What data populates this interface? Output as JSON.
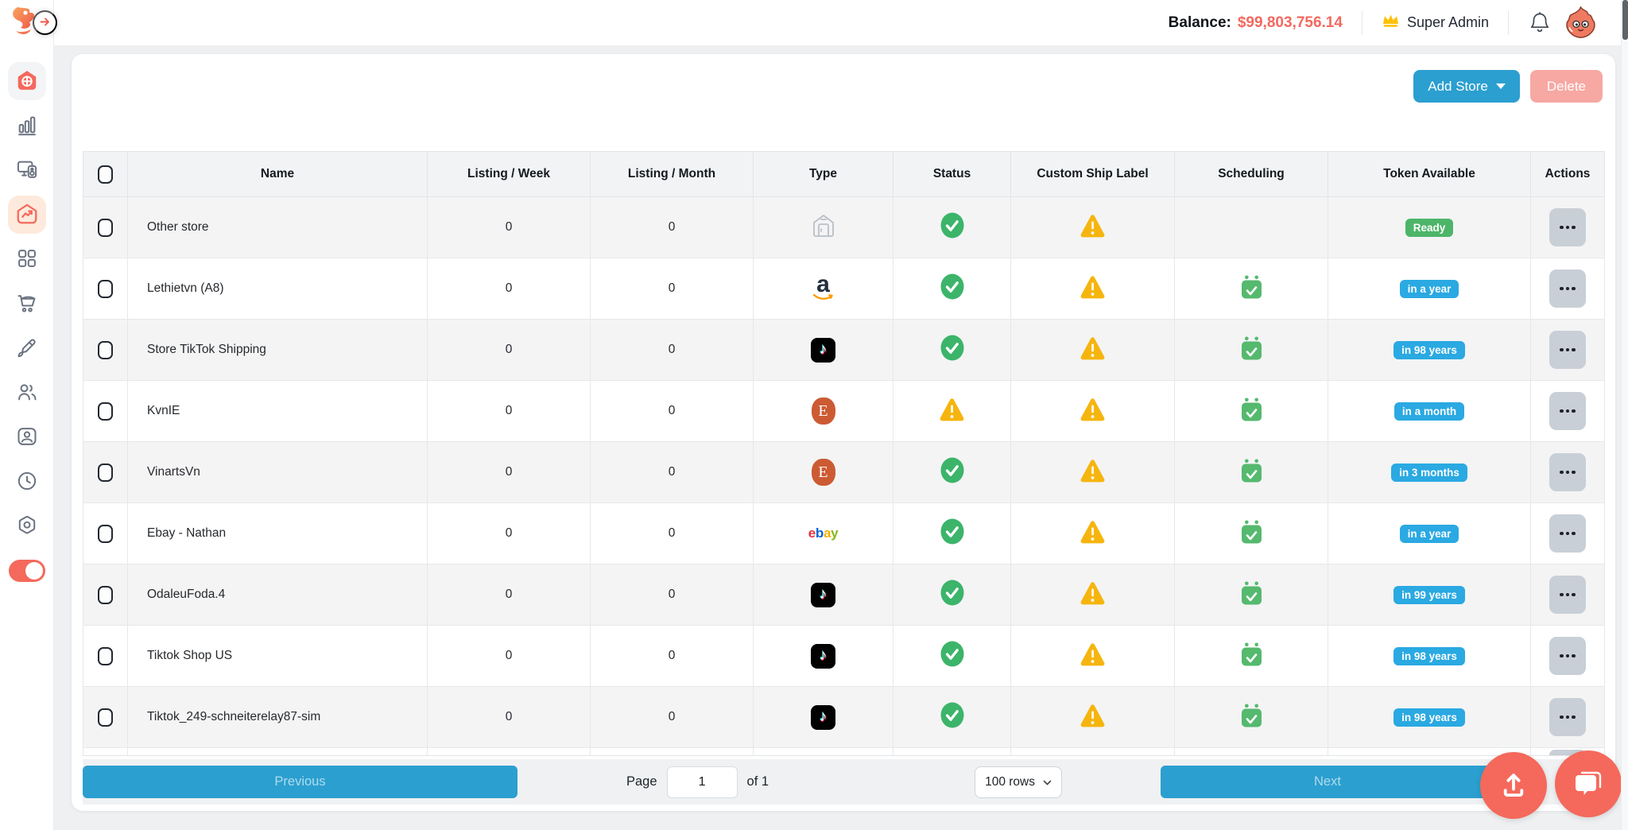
{
  "topbar": {
    "balance_label": "Balance:",
    "balance_value": "$99,803,756.14",
    "role_label": "Super Admin"
  },
  "sidebar": {
    "items": [
      {
        "id": "home",
        "icon": "home-globe-icon",
        "state": "bg-gray"
      },
      {
        "id": "analytics",
        "icon": "bar-chart-icon",
        "state": ""
      },
      {
        "id": "billing",
        "icon": "device-pay-icon",
        "state": ""
      },
      {
        "id": "stores",
        "icon": "home-trend-icon",
        "state": "bg-peach"
      },
      {
        "id": "apps",
        "icon": "grid-icon",
        "state": ""
      },
      {
        "id": "orders",
        "icon": "cart-icon",
        "state": ""
      },
      {
        "id": "design",
        "icon": "brush-icon",
        "state": ""
      },
      {
        "id": "members",
        "icon": "users-icon",
        "state": ""
      },
      {
        "id": "profile",
        "icon": "id-card-icon",
        "state": ""
      },
      {
        "id": "history",
        "icon": "clock-icon",
        "state": ""
      },
      {
        "id": "settings",
        "icon": "settings-icon",
        "state": ""
      }
    ],
    "toggle_on": true
  },
  "toolbar": {
    "add_store_label": "Add Store",
    "delete_label": "Delete"
  },
  "table": {
    "headers": [
      "Name",
      "Listing / Week",
      "Listing / Month",
      "Type",
      "Status",
      "Custom Ship Label",
      "Scheduling",
      "Token Available",
      "Actions"
    ],
    "rows": [
      {
        "name": "Other store",
        "listing_week": "0",
        "listing_month": "0",
        "type_icon": "storefront-icon",
        "status_icon": "check-icon",
        "ship_label_icon": "warning-icon",
        "scheduling_icon": "",
        "token": {
          "label": "Ready",
          "color": "green"
        }
      },
      {
        "name": "Lethietvn (A8)",
        "listing_week": "0",
        "listing_month": "0",
        "type_icon": "amazon-icon",
        "status_icon": "check-icon",
        "ship_label_icon": "warning-icon",
        "scheduling_icon": "calendar-check-icon",
        "token": {
          "label": "in a year",
          "color": "blue"
        }
      },
      {
        "name": "Store TikTok Shipping",
        "listing_week": "0",
        "listing_month": "0",
        "type_icon": "tiktok-icon",
        "status_icon": "check-icon",
        "ship_label_icon": "warning-icon",
        "scheduling_icon": "calendar-check-icon",
        "token": {
          "label": "in 98 years",
          "color": "blue"
        }
      },
      {
        "name": "KvnIE",
        "listing_week": "0",
        "listing_month": "0",
        "type_icon": "etsy-icon",
        "status_icon": "warning-icon",
        "ship_label_icon": "warning-icon",
        "scheduling_icon": "calendar-check-icon",
        "token": {
          "label": "in a month",
          "color": "blue"
        }
      },
      {
        "name": "VinartsVn",
        "listing_week": "0",
        "listing_month": "0",
        "type_icon": "etsy-icon",
        "status_icon": "check-icon",
        "ship_label_icon": "warning-icon",
        "scheduling_icon": "calendar-check-icon",
        "token": {
          "label": "in 3 months",
          "color": "blue"
        }
      },
      {
        "name": "Ebay - Nathan",
        "listing_week": "0",
        "listing_month": "0",
        "type_icon": "ebay-icon",
        "status_icon": "check-icon",
        "ship_label_icon": "warning-icon",
        "scheduling_icon": "calendar-check-icon",
        "token": {
          "label": "in a year",
          "color": "blue"
        }
      },
      {
        "name": "OdaleuFoda.4",
        "listing_week": "0",
        "listing_month": "0",
        "type_icon": "tiktok-icon",
        "status_icon": "check-icon",
        "ship_label_icon": "warning-icon",
        "scheduling_icon": "calendar-check-icon",
        "token": {
          "label": "in 99 years",
          "color": "blue"
        }
      },
      {
        "name": "Tiktok Shop US",
        "listing_week": "0",
        "listing_month": "0",
        "type_icon": "tiktok-icon",
        "status_icon": "check-icon",
        "ship_label_icon": "warning-icon",
        "scheduling_icon": "calendar-check-icon",
        "token": {
          "label": "in 98 years",
          "color": "blue"
        }
      },
      {
        "name": "Tiktok_249-schneiterelay87-sim",
        "listing_week": "0",
        "listing_month": "0",
        "type_icon": "tiktok-icon",
        "status_icon": "check-icon",
        "ship_label_icon": "warning-icon",
        "scheduling_icon": "calendar-check-icon",
        "token": {
          "label": "in 98 years",
          "color": "blue"
        }
      }
    ]
  },
  "pagination": {
    "previous_label": "Previous",
    "page_label": "Page",
    "page_value": "1",
    "of_label": "of 1",
    "rows_per_page": "100 rows",
    "next_label": "Next"
  },
  "colors": {
    "accent_blue": "#2b9fd0",
    "badge_blue": "#2aa9e2",
    "badge_green": "#4db569",
    "success_green": "#3cb46a",
    "warning_yellow": "#f6b50e",
    "scheduling_green": "#55b96e",
    "brand_salmon": "#f4695c",
    "delete_pink": "#f7a8a3"
  }
}
